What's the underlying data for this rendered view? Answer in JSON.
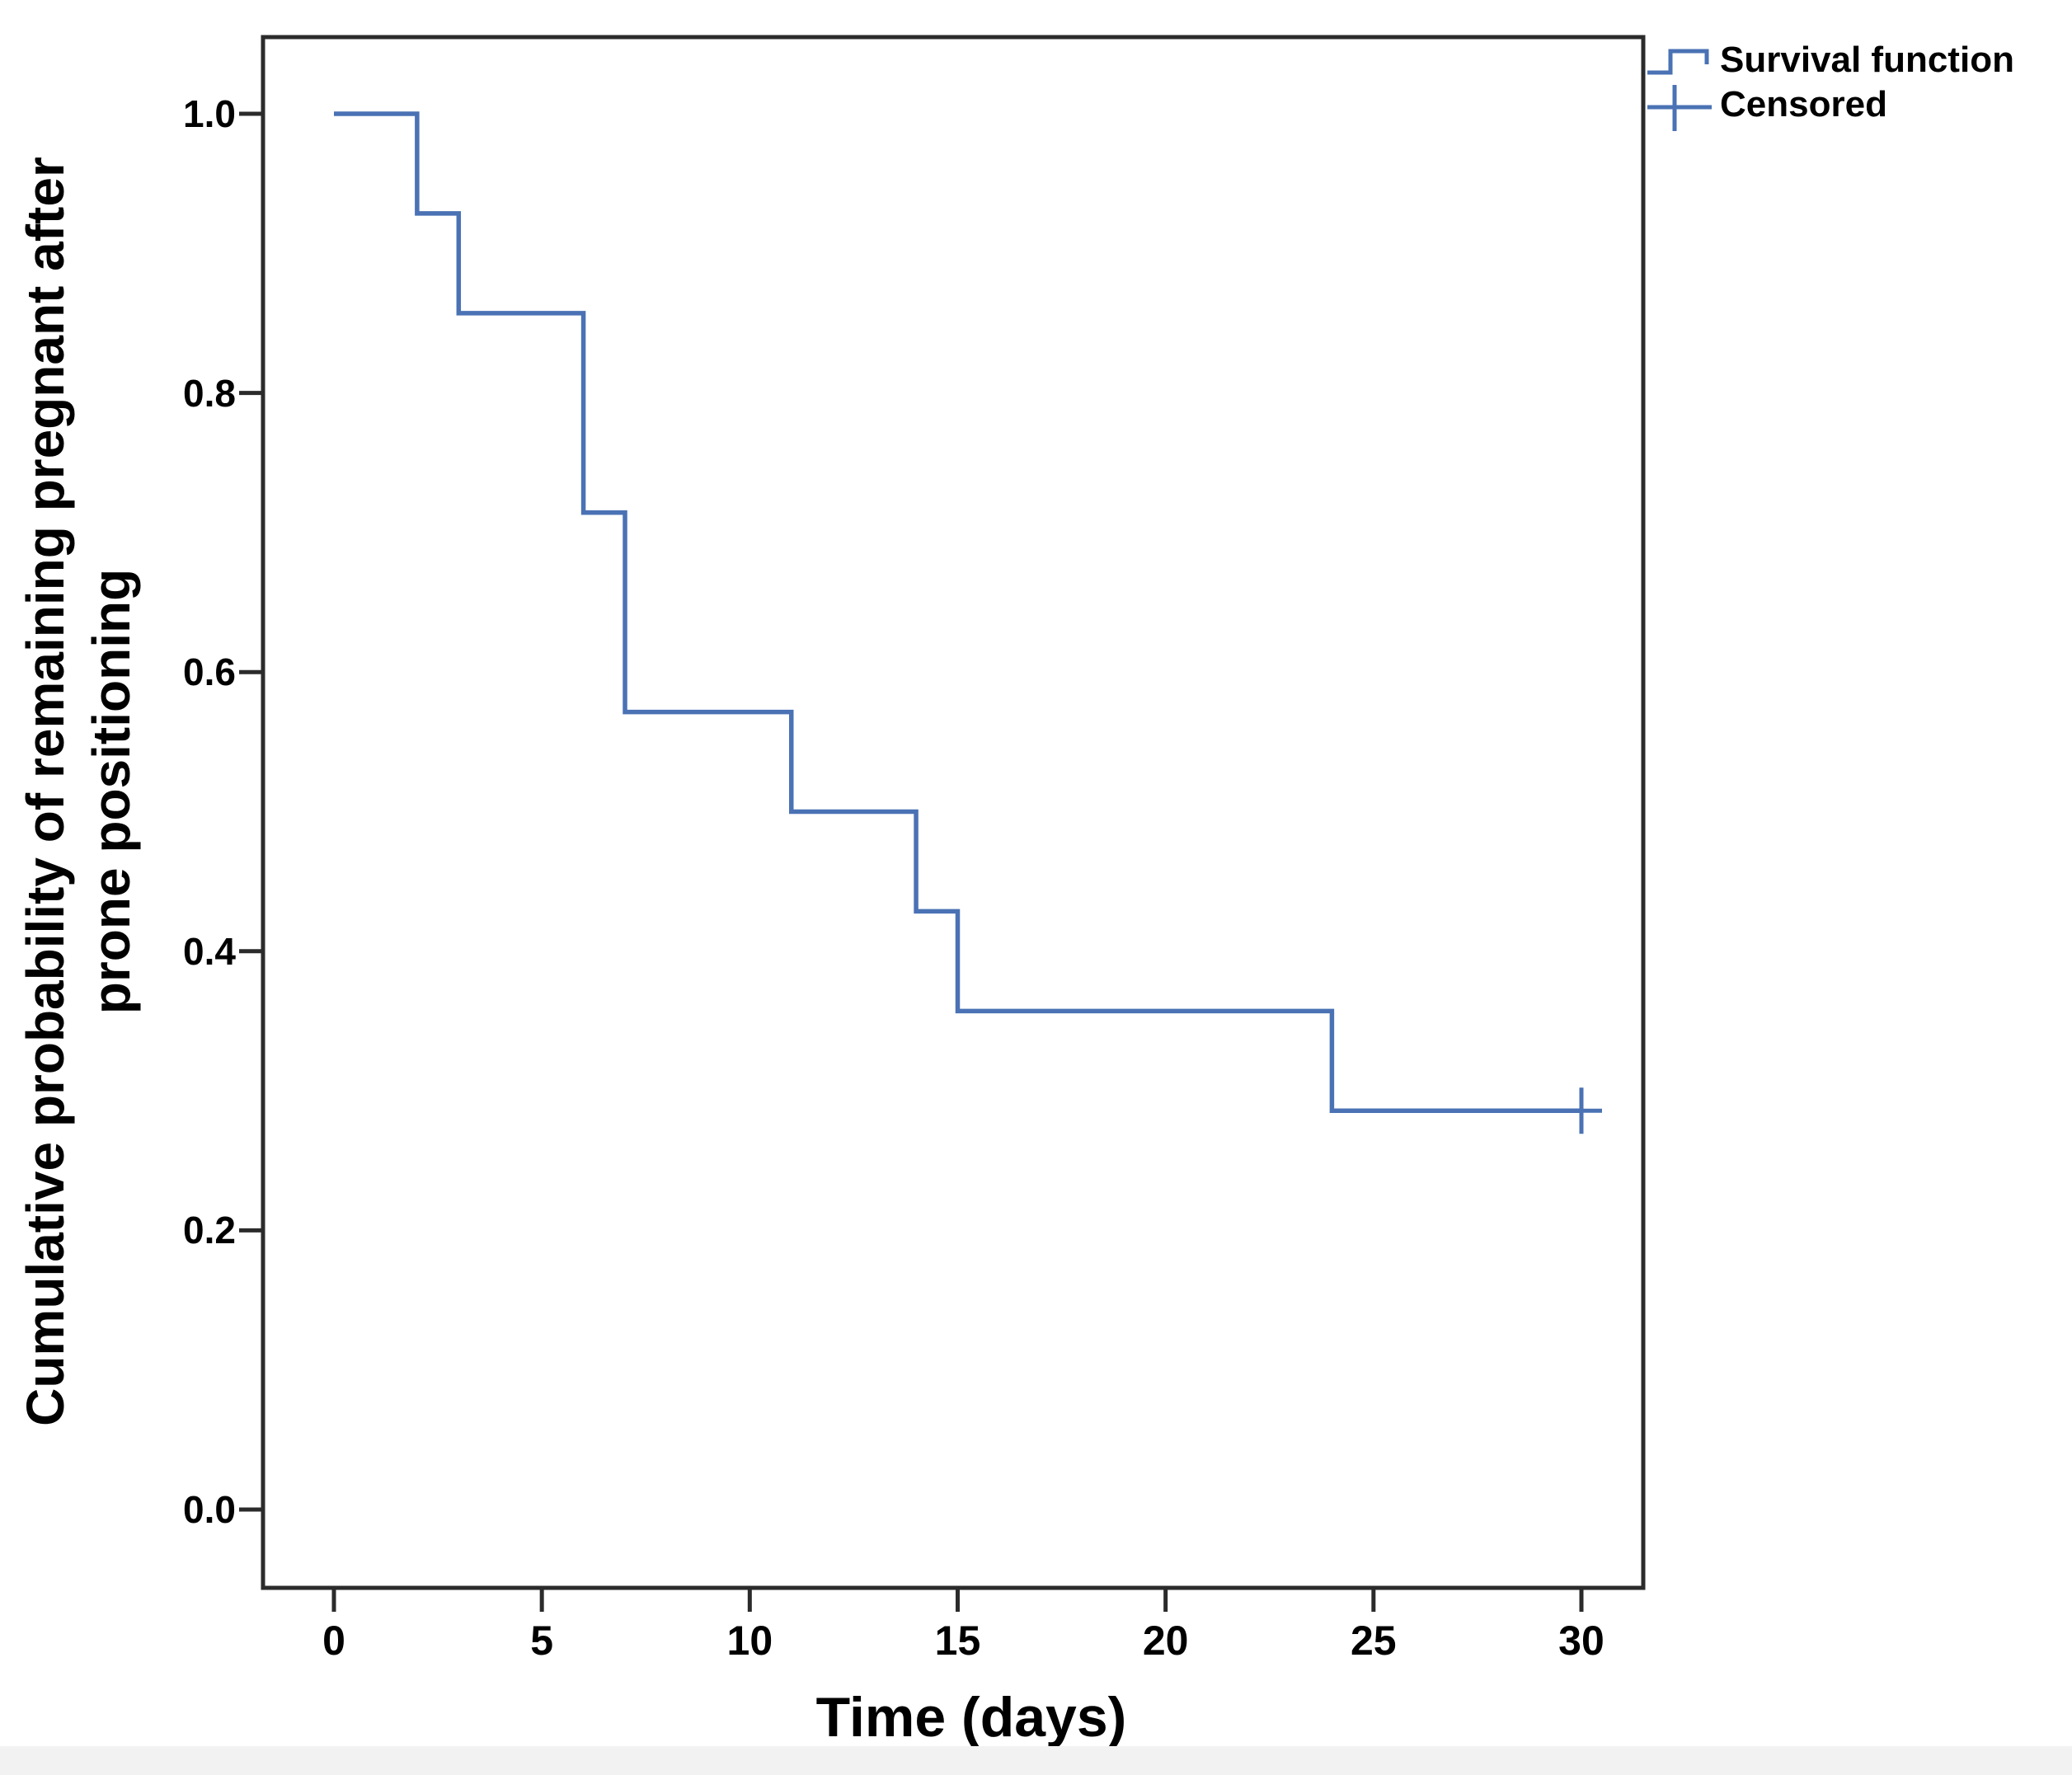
{
  "chart_data": {
    "type": "line",
    "subtype": "kaplan-meier-step",
    "title": "",
    "xlabel": "Time (days)",
    "ylabel": "Cumulative probability of remaining pregnant after prone positioning",
    "ylabel_lines": [
      "Cumulative probability of remaining pregnant after",
      "prone positioning"
    ],
    "xlim": [
      0,
      30
    ],
    "ylim": [
      0.0,
      1.0
    ],
    "grid": false,
    "legend_position": "top-right-outside",
    "x_ticks": [
      0,
      5,
      10,
      15,
      20,
      25,
      30
    ],
    "x_tick_labels": [
      "0",
      "5",
      "10",
      "15",
      "20",
      "25",
      "30"
    ],
    "y_ticks": [
      1.0,
      0.8,
      0.6,
      0.4,
      0.2,
      0.0
    ],
    "y_tick_labels": [
      "1.0",
      "0.8",
      "0.6",
      "0.4",
      "0.2",
      "0.0"
    ],
    "series": [
      {
        "name": "Survival function",
        "type": "step",
        "points": [
          [
            0,
            1.0
          ],
          [
            2,
            0.9286
          ],
          [
            3,
            0.8571
          ],
          [
            6,
            0.7143
          ],
          [
            7,
            0.5714
          ],
          [
            11,
            0.5
          ],
          [
            14,
            0.4286
          ],
          [
            15,
            0.3571
          ],
          [
            24,
            0.2857
          ]
        ],
        "end_time": 30
      }
    ],
    "censored_points": [
      [
        30,
        0.2857
      ]
    ],
    "legend": [
      {
        "label": "Survival function",
        "marker": "step-line"
      },
      {
        "label": "Censored",
        "marker": "plus-on-line"
      }
    ],
    "colors": {
      "curve": "#4a72b4",
      "axis": "#2b2b2b",
      "text": "#000000"
    }
  }
}
